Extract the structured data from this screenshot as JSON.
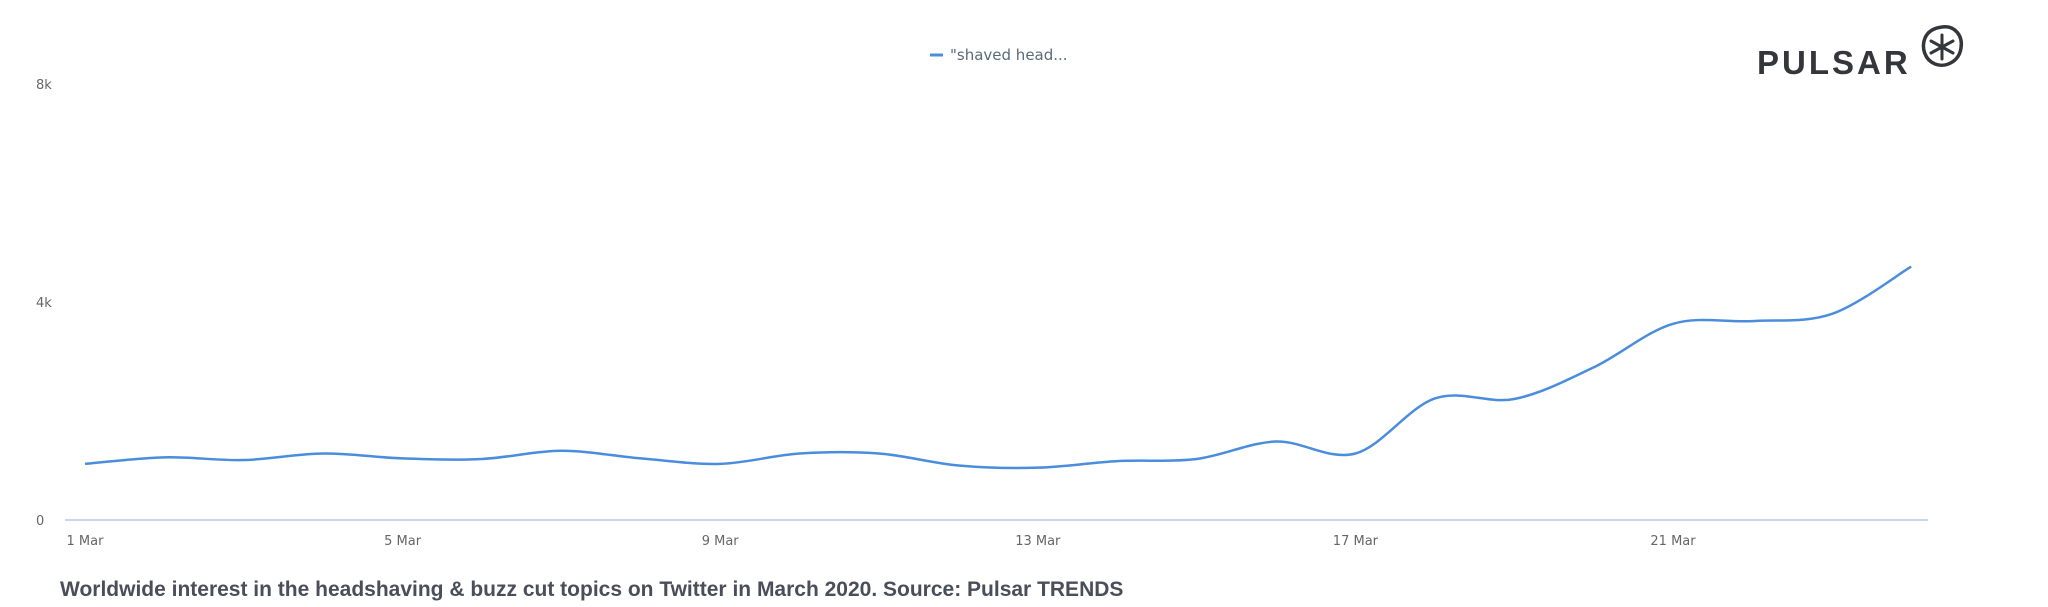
{
  "chart_data": {
    "type": "line",
    "title": "",
    "xlabel": "",
    "ylabel": "",
    "x": [
      "1 Mar",
      "2 Mar",
      "3 Mar",
      "4 Mar",
      "5 Mar",
      "6 Mar",
      "7 Mar",
      "8 Mar",
      "9 Mar",
      "10 Mar",
      "11 Mar",
      "12 Mar",
      "13 Mar",
      "14 Mar",
      "15 Mar",
      "16 Mar",
      "17 Mar",
      "18 Mar",
      "19 Mar",
      "20 Mar",
      "21 Mar",
      "22 Mar",
      "23 Mar",
      "24 Mar"
    ],
    "series": [
      {
        "name": "\"shaved head...",
        "color": "#4a8ddc",
        "values": [
          1030,
          1150,
          1100,
          1220,
          1130,
          1120,
          1270,
          1130,
          1030,
          1220,
          1220,
          1000,
          960,
          1080,
          1120,
          1440,
          1220,
          2230,
          2220,
          2800,
          3600,
          3650,
          3780,
          4650
        ]
      }
    ],
    "xticks": [
      "1 Mar",
      "5 Mar",
      "9 Mar",
      "13 Mar",
      "17 Mar",
      "21 Mar"
    ],
    "yticks": [
      {
        "value": 0,
        "label": "0"
      },
      {
        "value": 4000,
        "label": "4k"
      },
      {
        "value": 8000,
        "label": "8k"
      }
    ],
    "ylim": [
      0,
      8000
    ],
    "grid": false,
    "legend": "top-center"
  },
  "caption": "Worldwide interest in the headshaving & buzz cut topics on Twitter in March 2020. Source: Pulsar TRENDS",
  "logo": {
    "text": "PULSAR"
  }
}
